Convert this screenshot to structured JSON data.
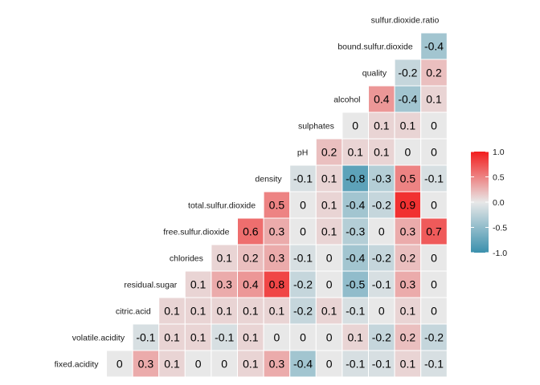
{
  "chart_data": {
    "type": "heatmap",
    "title": "",
    "variables": [
      "fixed.acidity",
      "volatile.acidity",
      "citric.acid",
      "residual.sugar",
      "chlorides",
      "free.sulfur.dioxide",
      "total.sulfur.dioxide",
      "density",
      "pH",
      "sulphates",
      "alcohol",
      "quality",
      "bound.sulfur.dioxide",
      "sulfur.dioxide.ratio"
    ],
    "values": [
      [
        0,
        0.3,
        0.1,
        0,
        0,
        0.1,
        0.3,
        -0.4,
        0,
        -0.1,
        -0.1,
        0.1,
        -0.1
      ],
      [
        -0.1,
        0.1,
        0.1,
        -0.1,
        0.1,
        0,
        0,
        0,
        0.1,
        -0.2,
        0.2,
        -0.2
      ],
      [
        0.1,
        0.1,
        0.1,
        0.1,
        0.1,
        -0.2,
        0.1,
        -0.1,
        0,
        0.1,
        0
      ],
      [
        0.1,
        0.3,
        0.4,
        0.8,
        -0.2,
        0,
        -0.5,
        -0.1,
        0.3,
        0
      ],
      [
        0.1,
        0.2,
        0.3,
        -0.1,
        0,
        -0.4,
        -0.2,
        0.2,
        0
      ],
      [
        0.6,
        0.3,
        0,
        0.1,
        -0.3,
        0,
        0.3,
        0.7
      ],
      [
        0.5,
        0,
        0.1,
        -0.4,
        -0.2,
        0.9,
        0
      ],
      [
        -0.1,
        0.1,
        -0.8,
        -0.3,
        0.5,
        -0.1
      ],
      [
        0.2,
        0.1,
        0.1,
        0,
        0
      ],
      [
        0,
        0.1,
        0.1,
        0
      ],
      [
        0.4,
        -0.4,
        0.1
      ],
      [
        -0.2,
        0.2
      ],
      [
        -0.4
      ]
    ],
    "legend": {
      "ticks": [
        "1.0",
        "0.5",
        "0.0",
        "-0.5",
        "-1.0"
      ],
      "tick_values": [
        1.0,
        0.5,
        0.0,
        -0.5,
        -1.0
      ],
      "range": [
        -1,
        1
      ],
      "placement": "right"
    },
    "colors": {
      "low": "#3a90ad",
      "mid": "#e8e8e8",
      "high": "#f21d1d",
      "cell_border": "#ffffff"
    }
  }
}
